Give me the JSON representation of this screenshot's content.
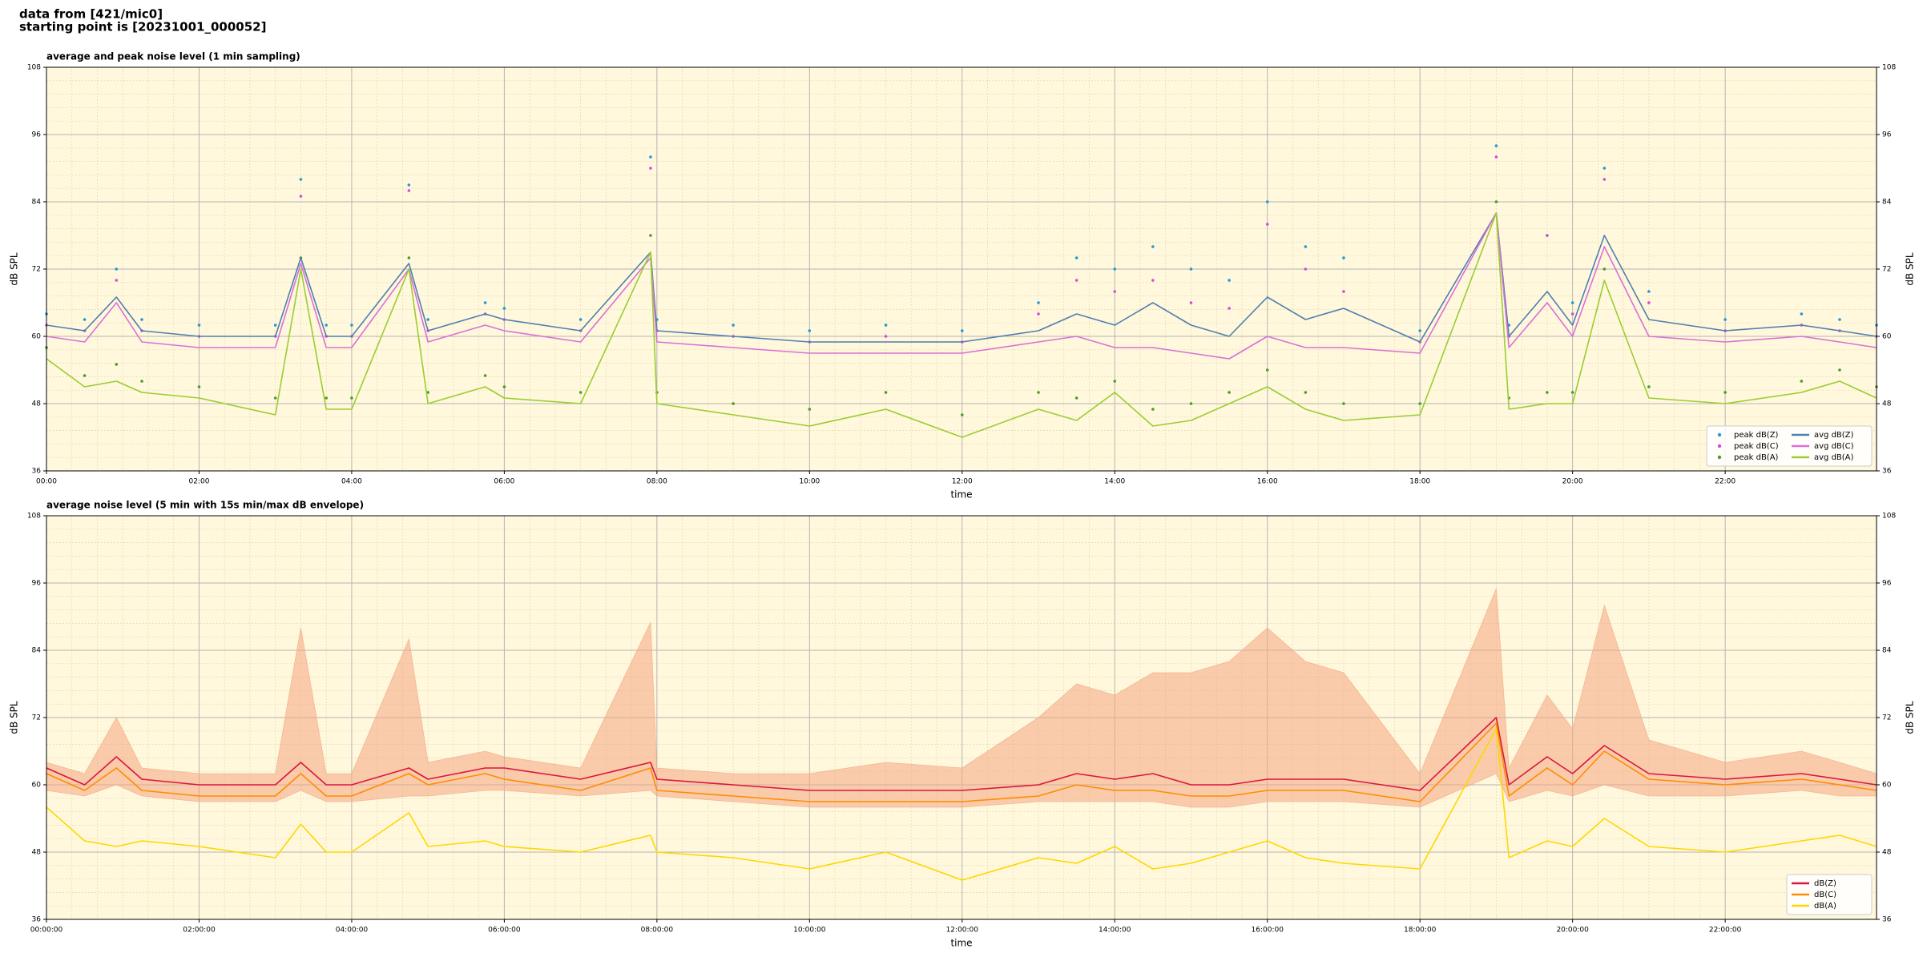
{
  "header": {
    "line1": "data from [421/mic0]",
    "line2": "starting point is [20231001_000052]"
  },
  "chart_data": [
    {
      "type": "line",
      "title": "average and peak noise level (1 min sampling)",
      "x_label": "time",
      "y_label": "dB SPL",
      "x": [
        0,
        30,
        55,
        75,
        120,
        180,
        200,
        220,
        240,
        285,
        300,
        345,
        360,
        420,
        475,
        480,
        540,
        600,
        660,
        720,
        780,
        810,
        840,
        870,
        900,
        930,
        960,
        990,
        1020,
        1080,
        1140,
        1150,
        1180,
        1200,
        1225,
        1260,
        1320,
        1380,
        1410,
        1439
      ],
      "xlim": [
        0,
        1439
      ],
      "xticks": [
        {
          "value": 0,
          "label": "00:00"
        },
        {
          "value": 120,
          "label": "02:00"
        },
        {
          "value": 240,
          "label": "04:00"
        },
        {
          "value": 360,
          "label": "06:00"
        },
        {
          "value": 480,
          "label": "08:00"
        },
        {
          "value": 600,
          "label": "10:00"
        },
        {
          "value": 720,
          "label": "12:00"
        },
        {
          "value": 840,
          "label": "14:00"
        },
        {
          "value": 960,
          "label": "16:00"
        },
        {
          "value": 1080,
          "label": "18:00"
        },
        {
          "value": 1200,
          "label": "20:00"
        },
        {
          "value": 1320,
          "label": "22:00"
        }
      ],
      "ylim": [
        36,
        108
      ],
      "yticks": [
        36,
        48,
        60,
        72,
        84,
        96,
        108
      ],
      "grid": true,
      "legend": "lower right",
      "background": "#fff8dc",
      "series": [
        {
          "name": "peak dB(Z)",
          "color": "#1f9ad6",
          "style": "points",
          "values": [
            64,
            63,
            72,
            63,
            62,
            62,
            88,
            62,
            62,
            87,
            63,
            66,
            65,
            63,
            92,
            63,
            62,
            61,
            62,
            61,
            66,
            74,
            72,
            76,
            72,
            70,
            84,
            76,
            74,
            61,
            94,
            62,
            78,
            66,
            90,
            68,
            63,
            64,
            63,
            62
          ]
        },
        {
          "name": "peak dB(C)",
          "color": "#d946d9",
          "style": "points",
          "values": [
            62,
            61,
            70,
            61,
            60,
            60,
            85,
            60,
            60,
            86,
            61,
            64,
            63,
            61,
            90,
            61,
            60,
            59,
            60,
            59,
            64,
            70,
            68,
            70,
            66,
            65,
            80,
            72,
            68,
            59,
            92,
            60,
            78,
            64,
            88,
            66,
            61,
            62,
            61,
            60
          ]
        },
        {
          "name": "peak dB(A)",
          "color": "#4c9a2a",
          "style": "points",
          "values": [
            58,
            53,
            55,
            52,
            51,
            49,
            74,
            49,
            49,
            74,
            50,
            53,
            51,
            50,
            78,
            50,
            48,
            47,
            50,
            46,
            50,
            49,
            52,
            47,
            48,
            50,
            54,
            50,
            48,
            48,
            84,
            49,
            50,
            50,
            72,
            51,
            50,
            52,
            54,
            51
          ]
        },
        {
          "name": "avg dB(Z)",
          "color": "#4e7fb0",
          "style": "line",
          "values": [
            62,
            61,
            67,
            61,
            60,
            60,
            74,
            60,
            60,
            73,
            61,
            64,
            63,
            61,
            75,
            61,
            60,
            59,
            59,
            59,
            61,
            64,
            62,
            66,
            62,
            60,
            67,
            63,
            65,
            59,
            82,
            60,
            68,
            62,
            78,
            63,
            61,
            62,
            61,
            60
          ]
        },
        {
          "name": "avg dB(C)",
          "color": "#da70d6",
          "style": "line",
          "values": [
            60,
            59,
            66,
            59,
            58,
            58,
            73,
            58,
            58,
            72,
            59,
            62,
            61,
            59,
            74,
            59,
            58,
            57,
            57,
            57,
            59,
            60,
            58,
            58,
            57,
            56,
            60,
            58,
            58,
            57,
            82,
            58,
            66,
            60,
            76,
            60,
            59,
            60,
            59,
            58
          ]
        },
        {
          "name": "avg dB(A)",
          "color": "#9acd32",
          "style": "line",
          "values": [
            56,
            51,
            52,
            50,
            49,
            46,
            72,
            47,
            47,
            72,
            48,
            51,
            49,
            48,
            75,
            48,
            46,
            44,
            47,
            42,
            47,
            45,
            50,
            44,
            45,
            48,
            51,
            47,
            45,
            46,
            82,
            47,
            48,
            48,
            70,
            49,
            48,
            50,
            52,
            49
          ]
        }
      ]
    },
    {
      "type": "line",
      "title": "average noise level (5 min with 15s min/max dB envelope)",
      "x_label": "time",
      "y_label": "dB SPL",
      "x": [
        0,
        30,
        55,
        75,
        120,
        180,
        200,
        220,
        240,
        285,
        300,
        345,
        360,
        420,
        475,
        480,
        540,
        600,
        660,
        720,
        780,
        810,
        840,
        870,
        900,
        930,
        960,
        990,
        1020,
        1080,
        1140,
        1150,
        1180,
        1200,
        1225,
        1260,
        1320,
        1380,
        1410,
        1439
      ],
      "xlim": [
        0,
        1439
      ],
      "xticks": [
        {
          "value": 0,
          "label": "00:00:00"
        },
        {
          "value": 120,
          "label": "02:00:00"
        },
        {
          "value": 240,
          "label": "04:00:00"
        },
        {
          "value": 360,
          "label": "06:00:00"
        },
        {
          "value": 480,
          "label": "08:00:00"
        },
        {
          "value": 600,
          "label": "10:00:00"
        },
        {
          "value": 720,
          "label": "12:00:00"
        },
        {
          "value": 840,
          "label": "14:00:00"
        },
        {
          "value": 960,
          "label": "16:00:00"
        },
        {
          "value": 1080,
          "label": "18:00:00"
        },
        {
          "value": 1200,
          "label": "20:00:00"
        },
        {
          "value": 1320,
          "label": "22:00:00"
        }
      ],
      "ylim": [
        36,
        108
      ],
      "yticks": [
        36,
        48,
        60,
        72,
        84,
        96,
        108
      ],
      "grid": true,
      "legend": "lower right",
      "background": "#fff8dc",
      "envelope": {
        "color": "#f4a582",
        "min": [
          59,
          58,
          60,
          58,
          57,
          57,
          59,
          57,
          57,
          58,
          58,
          59,
          59,
          58,
          59,
          58,
          57,
          56,
          56,
          56,
          57,
          57,
          57,
          57,
          56,
          56,
          57,
          57,
          57,
          56,
          62,
          57,
          59,
          58,
          60,
          58,
          58,
          59,
          58,
          58
        ],
        "max": [
          64,
          62,
          72,
          63,
          62,
          62,
          88,
          62,
          62,
          86,
          64,
          66,
          65,
          63,
          89,
          63,
          62,
          62,
          64,
          63,
          72,
          78,
          76,
          80,
          80,
          82,
          88,
          82,
          80,
          62,
          95,
          63,
          76,
          70,
          92,
          68,
          64,
          66,
          64,
          62
        ]
      },
      "series": [
        {
          "name": "dB(Z)",
          "color": "#dc143c",
          "style": "line",
          "values": [
            63,
            60,
            65,
            61,
            60,
            60,
            64,
            60,
            60,
            63,
            61,
            63,
            63,
            61,
            64,
            61,
            60,
            59,
            59,
            59,
            60,
            62,
            61,
            62,
            60,
            60,
            61,
            61,
            61,
            59,
            72,
            60,
            65,
            62,
            67,
            62,
            61,
            62,
            61,
            60
          ]
        },
        {
          "name": "dB(C)",
          "color": "#ff8c00",
          "style": "line",
          "values": [
            62,
            59,
            63,
            59,
            58,
            58,
            62,
            58,
            58,
            62,
            60,
            62,
            61,
            59,
            63,
            59,
            58,
            57,
            57,
            57,
            58,
            60,
            59,
            59,
            58,
            58,
            59,
            59,
            59,
            57,
            71,
            58,
            63,
            60,
            66,
            61,
            60,
            61,
            60,
            59
          ]
        },
        {
          "name": "dB(A)",
          "color": "#ffd700",
          "style": "line",
          "values": [
            56,
            50,
            49,
            50,
            49,
            47,
            53,
            48,
            48,
            55,
            49,
            50,
            49,
            48,
            51,
            48,
            47,
            45,
            48,
            43,
            47,
            46,
            49,
            45,
            46,
            48,
            50,
            47,
            46,
            45,
            70,
            47,
            50,
            49,
            54,
            49,
            48,
            50,
            51,
            49
          ]
        }
      ]
    }
  ]
}
